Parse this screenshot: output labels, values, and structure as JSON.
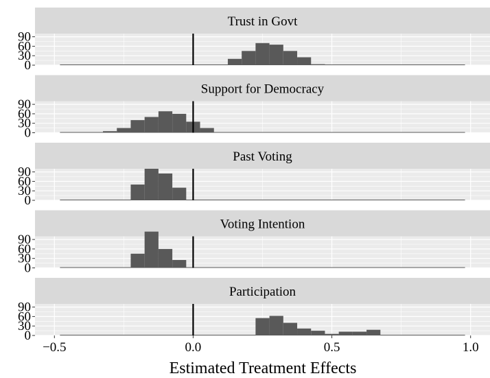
{
  "chart_data": {
    "type": "bar",
    "chart_kind": "faceted histogram",
    "xlabel": "Estimated Treatment Effects",
    "ylabel": "",
    "xlim": [
      -0.57,
      1.07
    ],
    "ylim": [
      0,
      100
    ],
    "x_ticks": [
      -0.5,
      0.0,
      0.5,
      1.0
    ],
    "x_tick_labels": [
      "−0.5",
      "0.0",
      "0.5",
      "1.0"
    ],
    "y_ticks": [
      0,
      30,
      60,
      90
    ],
    "y_tick_labels": [
      "0",
      "30",
      "60",
      "90"
    ],
    "reference_line_x": 0,
    "bin_width": 0.05,
    "grid": true,
    "panel_background": "#EBEBEB",
    "strip_background": "#D9D9D9",
    "bar_color": "#595959",
    "line_color": "#000000",
    "xrange": [
      -0.48,
      0.98
    ],
    "panels": [
      {
        "title": "Trust in Govt",
        "bins": [
          {
            "x0": 0.075,
            "x1": 0.125,
            "count": 2
          },
          {
            "x0": 0.125,
            "x1": 0.175,
            "count": 20
          },
          {
            "x0": 0.175,
            "x1": 0.225,
            "count": 45
          },
          {
            "x0": 0.225,
            "x1": 0.275,
            "count": 70
          },
          {
            "x0": 0.275,
            "x1": 0.325,
            "count": 65
          },
          {
            "x0": 0.325,
            "x1": 0.375,
            "count": 45
          },
          {
            "x0": 0.375,
            "x1": 0.425,
            "count": 25
          },
          {
            "x0": 0.425,
            "x1": 0.475,
            "count": 3
          }
        ]
      },
      {
        "title": "Support for Democracy",
        "bins": [
          {
            "x0": -0.325,
            "x1": -0.275,
            "count": 5
          },
          {
            "x0": -0.275,
            "x1": -0.225,
            "count": 15
          },
          {
            "x0": -0.225,
            "x1": -0.175,
            "count": 40
          },
          {
            "x0": -0.175,
            "x1": -0.125,
            "count": 50
          },
          {
            "x0": -0.125,
            "x1": -0.075,
            "count": 68
          },
          {
            "x0": -0.075,
            "x1": -0.025,
            "count": 60
          },
          {
            "x0": -0.025,
            "x1": 0.025,
            "count": 35
          },
          {
            "x0": 0.025,
            "x1": 0.075,
            "count": 15
          }
        ]
      },
      {
        "title": "Past Voting",
        "bins": [
          {
            "x0": -0.225,
            "x1": -0.175,
            "count": 50
          },
          {
            "x0": -0.175,
            "x1": -0.125,
            "count": 100
          },
          {
            "x0": -0.125,
            "x1": -0.075,
            "count": 85
          },
          {
            "x0": -0.075,
            "x1": -0.025,
            "count": 40
          }
        ]
      },
      {
        "title": "Voting Intention",
        "bins": [
          {
            "x0": -0.225,
            "x1": -0.175,
            "count": 45
          },
          {
            "x0": -0.175,
            "x1": -0.125,
            "count": 115
          },
          {
            "x0": -0.125,
            "x1": -0.075,
            "count": 60
          },
          {
            "x0": -0.075,
            "x1": -0.025,
            "count": 25
          }
        ]
      },
      {
        "title": "Participation",
        "bins": [
          {
            "x0": 0.225,
            "x1": 0.275,
            "count": 55
          },
          {
            "x0": 0.275,
            "x1": 0.325,
            "count": 62
          },
          {
            "x0": 0.325,
            "x1": 0.375,
            "count": 40
          },
          {
            "x0": 0.375,
            "x1": 0.425,
            "count": 22
          },
          {
            "x0": 0.425,
            "x1": 0.475,
            "count": 15
          },
          {
            "x0": 0.475,
            "x1": 0.525,
            "count": 5
          },
          {
            "x0": 0.525,
            "x1": 0.575,
            "count": 12
          },
          {
            "x0": 0.575,
            "x1": 0.625,
            "count": 12
          },
          {
            "x0": 0.625,
            "x1": 0.675,
            "count": 18
          }
        ]
      }
    ]
  }
}
